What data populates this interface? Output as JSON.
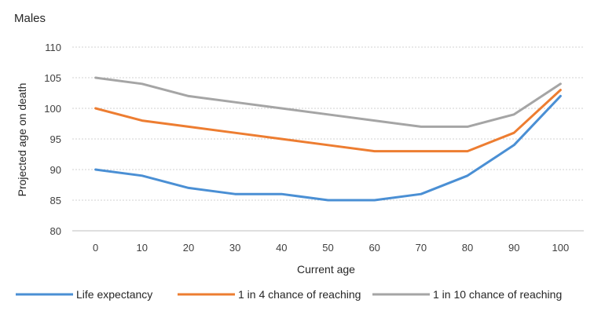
{
  "chart_data": {
    "type": "line",
    "title": "Males",
    "xlabel": "Current age",
    "ylabel": "Projected age on death",
    "x": [
      0,
      10,
      20,
      30,
      40,
      50,
      60,
      70,
      80,
      90,
      100
    ],
    "ylim": [
      80,
      110
    ],
    "yticks": [
      80,
      85,
      90,
      95,
      100,
      105,
      110
    ],
    "grid": true,
    "legend_position": "bottom",
    "series": [
      {
        "name": "Life expectancy",
        "color": "#4a8fd4",
        "values": [
          90,
          89,
          87,
          86,
          86,
          85,
          85,
          86,
          89,
          94,
          102
        ]
      },
      {
        "name": "1 in 4 chance of reaching",
        "color": "#ed7d31",
        "values": [
          100,
          98,
          97,
          96,
          95,
          94,
          93,
          93,
          93,
          96,
          103
        ]
      },
      {
        "name": "1 in 10 chance of reaching",
        "color": "#a5a5a5",
        "values": [
          105,
          104,
          102,
          101,
          100,
          99,
          98,
          97,
          97,
          99,
          104
        ]
      }
    ]
  }
}
